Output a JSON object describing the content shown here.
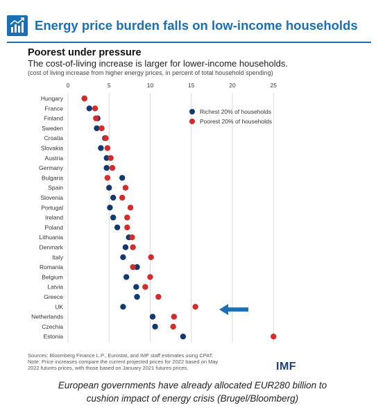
{
  "header": {
    "title": "Energy price burden falls on low-income households",
    "icon": "bar-chart-rising-icon",
    "color": "#1a6fb5"
  },
  "chart_data": {
    "type": "scatter",
    "title": "Poorest under pressure",
    "subtitle": "The cost-of-living increase is larger for lower-income households.",
    "note": "(cost of living increase from higher energy prices, in percent of total household spending)",
    "x_ticks": [
      0,
      5,
      10,
      15,
      20,
      25
    ],
    "xlim": [
      0,
      27
    ],
    "grid": "vertical",
    "legend_position": "top-right",
    "categories": [
      "Hungary",
      "France",
      "Finland",
      "Sweden",
      "Croatia",
      "Slovakia",
      "Austria",
      "Germany",
      "Bulgaria",
      "Spain",
      "Slovenia",
      "Portugal",
      "Ireland",
      "Poland",
      "Lithuania",
      "Denmark",
      "Italy",
      "Romania",
      "Belgium",
      "Latvia",
      "Greece",
      "UK",
      "Netherlands",
      "Czechia",
      "Estonia"
    ],
    "series": [
      {
        "name": "Richest 20% of households",
        "color": "#123a6e",
        "values": [
          2.0,
          2.6,
          3.6,
          3.5,
          4.5,
          4.0,
          4.7,
          4.7,
          6.6,
          5.0,
          5.5,
          5.1,
          5.5,
          6.0,
          7.4,
          7.0,
          6.7,
          8.4,
          7.1,
          8.3,
          8.4,
          6.7,
          10.3,
          10.6,
          14.0
        ]
      },
      {
        "name": "Poorest 20% of households",
        "color": "#d42b2b",
        "values": [
          2.0,
          3.3,
          3.4,
          4.1,
          4.6,
          4.8,
          5.2,
          5.4,
          4.8,
          7.0,
          6.6,
          7.6,
          7.2,
          7.2,
          7.8,
          7.9,
          10.1,
          7.9,
          10.0,
          9.4,
          11.0,
          15.5,
          12.9,
          12.8,
          25.0
        ]
      }
    ],
    "highlight": {
      "category": "UK",
      "marker": "arrow-left-icon",
      "color": "#1a6fb5"
    }
  },
  "sources": [
    "Sources: Bloomberg Finance L.P., Eurostat, and IMF staff estimates using CPAT.",
    "Note: Price increases compare the current projected prices for 2022 based on May",
    "2022 futures prices, with those based on January 2021 futures prices."
  ],
  "logo": "IMF",
  "caption": [
    "European governments have already allocated EUR280 billion to",
    "cushion impact of energy crisis (Brugel/Bloomberg)"
  ]
}
